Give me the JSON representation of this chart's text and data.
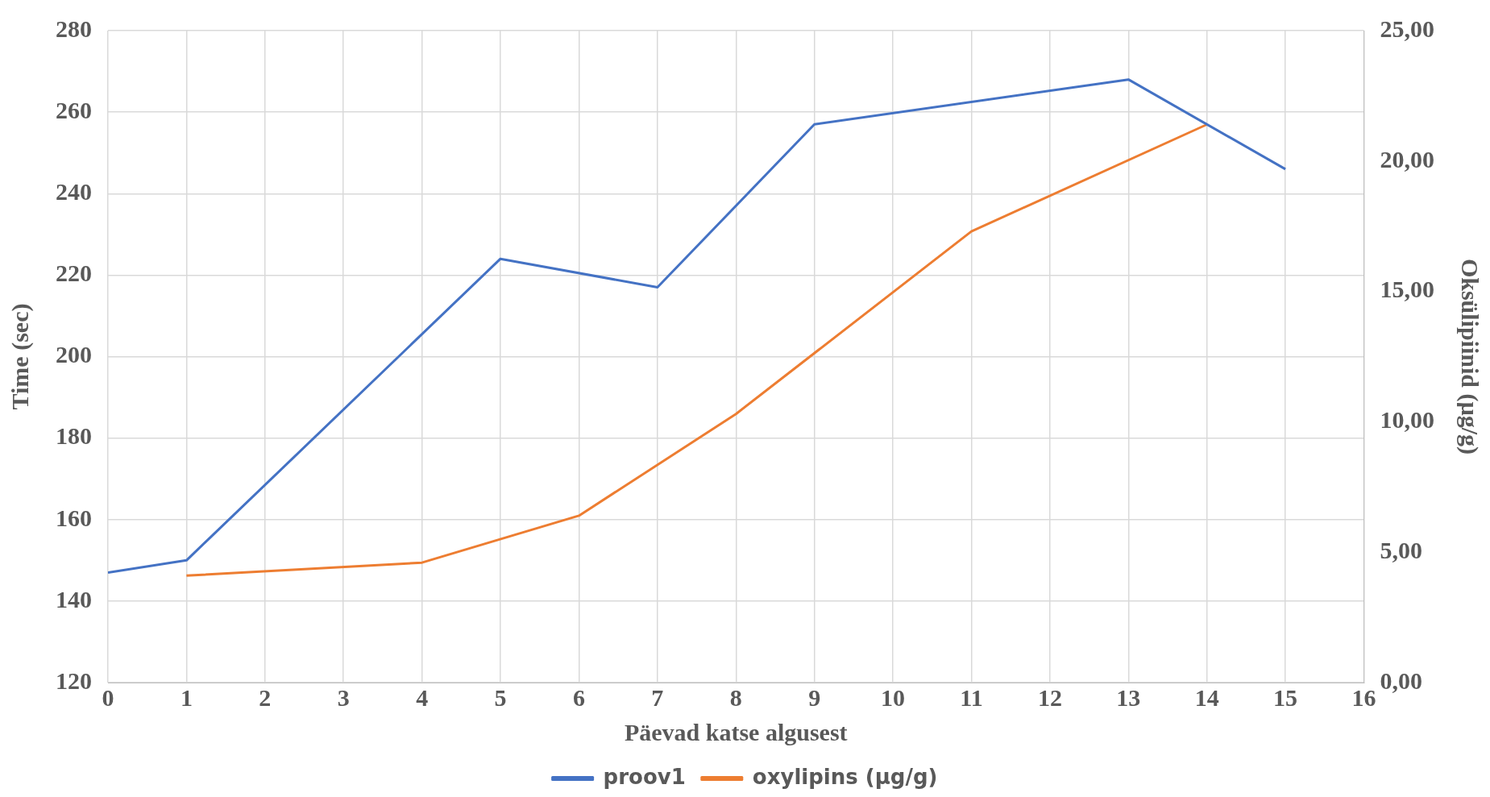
{
  "chart_data": {
    "type": "line",
    "xlabel": "Päevad katse algusest",
    "ylabel": "Time (sec)",
    "y2label": "Oksülipiinid (µg/g)",
    "series": [
      {
        "name": "proov1",
        "color": "#4472c4",
        "x": [
          0,
          1,
          5,
          7,
          9,
          13,
          15
        ],
        "values": [
          147,
          150,
          224,
          217,
          257,
          268,
          246
        ]
      },
      {
        "name": "oxylipins (µg/g)",
        "color": "#ed7d31",
        "axis": "y2",
        "x": [
          1,
          4,
          6,
          8,
          11,
          14
        ],
        "values": [
          4.1,
          4.6,
          6.4,
          10.3,
          17.3,
          21.4
        ]
      }
    ],
    "xlim": [
      0,
      16
    ],
    "xticks": [
      0,
      1,
      2,
      3,
      4,
      5,
      6,
      7,
      8,
      9,
      10,
      11,
      12,
      13,
      14,
      15,
      16
    ],
    "ylim": [
      120,
      280
    ],
    "yticks": [
      120,
      140,
      160,
      180,
      200,
      220,
      240,
      260,
      280
    ],
    "y2lim": [
      0,
      25
    ],
    "y2ticks": [
      {
        "value": 0,
        "label": "0,00"
      },
      {
        "value": 5,
        "label": "5,00"
      },
      {
        "value": 10,
        "label": "10,00"
      },
      {
        "value": 15,
        "label": "15,00"
      },
      {
        "value": 20,
        "label": "20,00"
      },
      {
        "value": 25,
        "label": "25,00"
      }
    ],
    "grid": true,
    "legend": "bottom",
    "marker": "none",
    "line_style": "solid"
  }
}
